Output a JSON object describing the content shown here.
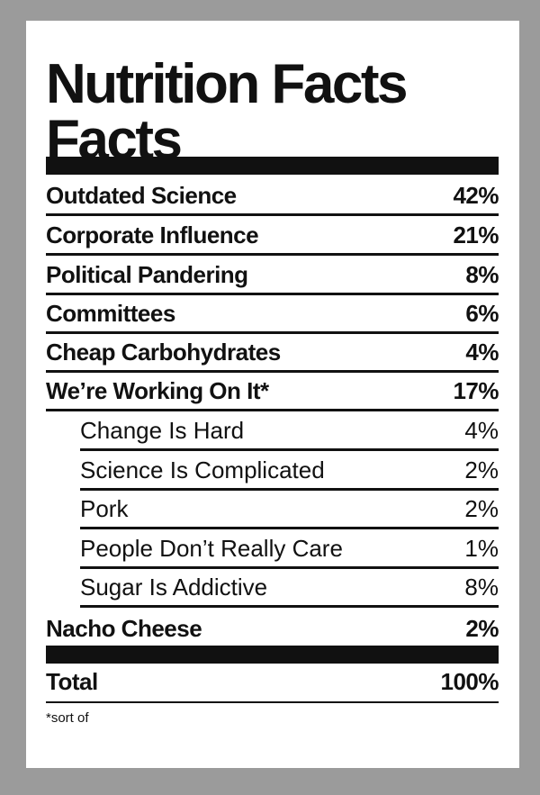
{
  "title_line1": "Nutrition Facts",
  "title_line2": "Facts",
  "rows": [
    {
      "name": "Outdated Science",
      "pct": "42%"
    },
    {
      "name": "Corporate Influence",
      "pct": "21%"
    },
    {
      "name": "Political Pandering",
      "pct": "8%"
    },
    {
      "name": "Committees",
      "pct": "6%"
    },
    {
      "name": "Cheap Carbohydrates",
      "pct": "4%"
    },
    {
      "name": "We’re Working On It*",
      "pct": "17%"
    },
    {
      "name": "Change Is Hard",
      "pct": "4%"
    },
    {
      "name": "Science Is Complicated",
      "pct": "2%"
    },
    {
      "name": "Pork",
      "pct": "2%"
    },
    {
      "name": "People Don’t Really Care",
      "pct": "1%"
    },
    {
      "name": "Sugar Is Addictive",
      "pct": "8%"
    },
    {
      "name": "Nacho Cheese",
      "pct": "2%"
    }
  ],
  "total": {
    "name": "Total",
    "pct": "100%"
  },
  "footnote": "*sort of"
}
